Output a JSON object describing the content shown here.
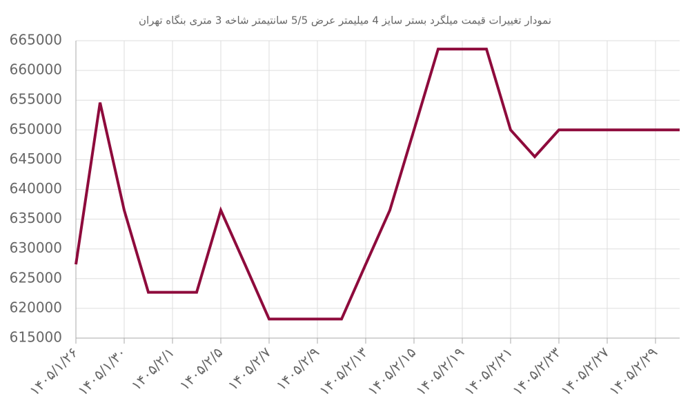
{
  "chart_data": {
    "type": "line",
    "title": "نمودار تغییرات قیمت میلگرد بستر سایز 4 میلیمتر عرض 5/5 سانتیمتر شاخه 3 متری بنگاه تهران",
    "categories": [
      "۱۴۰۵/۱/۲۶",
      null,
      "۱۴۰۵/۱/۳۰",
      null,
      "۱۴۰۵/۲/۱",
      null,
      "۱۴۰۵/۲/۵",
      null,
      "۱۴۰۵/۲/۷",
      null,
      "۱۴۰۵/۲/۹",
      null,
      "۱۴۰۵/۲/۱۳",
      null,
      "۱۴۰۵/۲/۱۵",
      null,
      "۱۴۰۵/۲/۱۹",
      null,
      "۱۴۰۵/۲/۲۱",
      null,
      "۱۴۰۵/۲/۲۳",
      null,
      "۱۴۰۵/۲/۲۷",
      null,
      "۱۴۰۵/۲/۲۹",
      null
    ],
    "values": [
      627400,
      654600,
      636500,
      622700,
      622700,
      622700,
      636500,
      627400,
      618200,
      618200,
      618200,
      618200,
      627400,
      636500,
      650000,
      663600,
      663600,
      663600,
      650000,
      645500,
      650000,
      650000,
      650000,
      650000,
      650000,
      650000
    ],
    "color": "#8e0b3c",
    "ylim": [
      615000,
      665000
    ],
    "yticks": [
      615000,
      620000,
      625000,
      630000,
      635000,
      640000,
      645000,
      650000,
      655000,
      660000,
      665000
    ],
    "grid": true
  }
}
